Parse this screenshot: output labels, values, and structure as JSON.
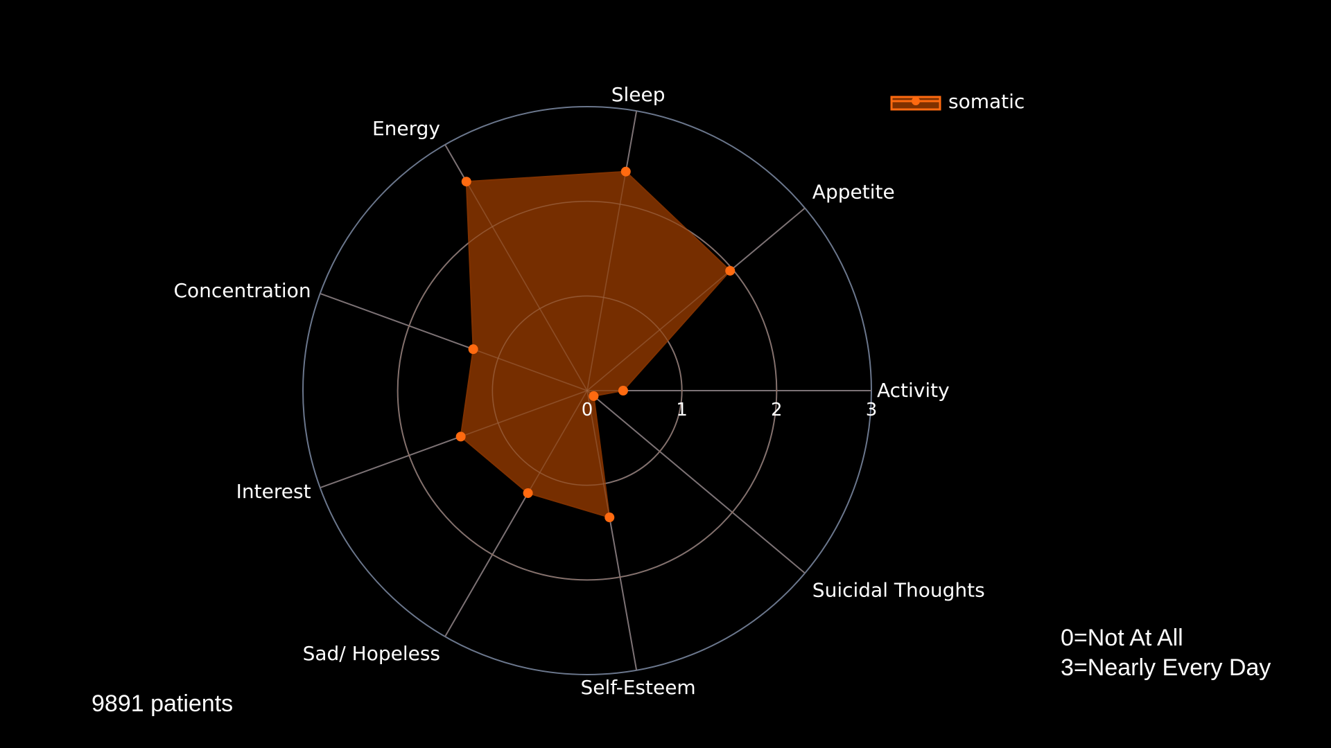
{
  "chart_data": {
    "type": "radar",
    "categories": [
      "Activity",
      "Appetite",
      "Sleep",
      "Energy",
      "Concentration",
      "Interest",
      "Sad/ Hopeless",
      "Self-Esteem",
      "Suicidal Thoughts"
    ],
    "radial_range": [
      0,
      3
    ],
    "radial_ticks": [
      "0",
      "1",
      "2",
      "3"
    ],
    "series": [
      {
        "name": "somatic",
        "values": [
          0.38,
          1.97,
          2.35,
          2.55,
          1.28,
          1.42,
          1.25,
          1.36,
          0.09
        ],
        "color": "#ff6a10",
        "fill": "#7f3100"
      }
    ],
    "legend_position": "top-right",
    "grid_color": "#6b778d"
  },
  "notes": {
    "line1": "0=Not At All",
    "line2": "3=Nearly Every Day"
  },
  "footer": {
    "patients": "9891 patients"
  }
}
